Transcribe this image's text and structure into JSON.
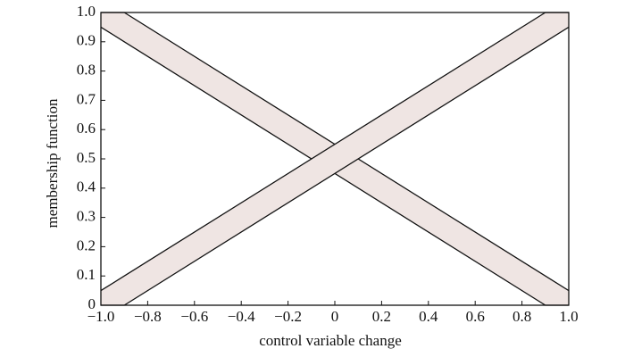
{
  "chart_data": {
    "type": "band",
    "x_label": "control variable change",
    "y_label": "membership function",
    "x": [
      -1,
      -0.9,
      0.9,
      1
    ],
    "series": [
      {
        "color": "#efe5e3",
        "upper": [
          1,
          1,
          0.1,
          0.05
        ],
        "lower": [
          0.95,
          0.9,
          0,
          0
        ]
      },
      {
        "color": "#efe5e3",
        "upper": [
          0.05,
          0.1,
          1,
          1
        ],
        "lower": [
          0,
          0,
          0.9,
          0.95
        ]
      }
    ],
    "xlim": [
      -1,
      1
    ],
    "ylim": [
      0,
      1
    ],
    "xticks": [
      {
        "value": -1,
        "label": "−1.0"
      },
      {
        "value": -0.8,
        "label": "−0.8"
      },
      {
        "value": -0.6,
        "label": "−0.6"
      },
      {
        "value": -0.4,
        "label": "−0.4"
      },
      {
        "value": -0.2,
        "label": "−0.2"
      },
      0,
      0.2,
      0.4,
      0.6,
      0.8,
      {
        "value": 1,
        "label": "1.0"
      }
    ],
    "yticks": [
      0,
      0.1,
      0.2,
      0.3,
      0.4,
      0.5,
      0.6,
      0.7,
      0.8,
      0.9,
      {
        "value": 1,
        "label": "1.0"
      }
    ]
  }
}
